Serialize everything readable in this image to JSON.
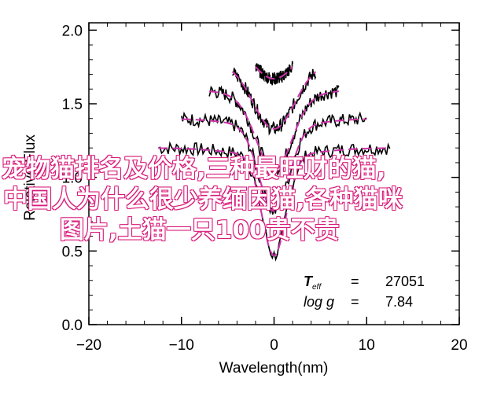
{
  "chart_data": {
    "type": "line",
    "xlabel": "Wavelength(nm)",
    "ylabel": "Relative Flux",
    "xlim": [
      -20,
      20
    ],
    "ylim": [
      0.0,
      2.05
    ],
    "x_ticks": [
      -20,
      -10,
      0,
      10,
      20
    ],
    "y_ticks": [
      0.0,
      0.5,
      1.0,
      1.5,
      2.0
    ],
    "x_tick_labels": [
      "−20",
      "−10",
      "0",
      "10",
      "20"
    ],
    "y_tick_labels": [
      "0.0",
      "0.5",
      "1.0",
      "1.5",
      "2.0"
    ],
    "grid": false,
    "colors": {
      "observed": "#000000",
      "model": "#cc33aa"
    },
    "series": [
      {
        "offset": 0.0,
        "xrange": [
          -12.5,
          12.5
        ],
        "sigma": 1.3,
        "depth": 0.68
      },
      {
        "offset": 0.2,
        "xrange": [
          -10,
          10
        ],
        "sigma": 1.6,
        "depth": 0.58
      },
      {
        "offset": 0.4,
        "xrange": [
          -7,
          7
        ],
        "sigma": 1.9,
        "depth": 0.5
      },
      {
        "offset": 0.6,
        "xrange": [
          -4.5,
          4.5
        ],
        "sigma": 2.2,
        "depth": 0.42
      },
      {
        "offset": 0.8,
        "xrange": [
          -2,
          2
        ],
        "sigma": 2.5,
        "depth": 0.28
      }
    ],
    "annotations": {
      "teff_label": "T",
      "teff_sub": "eff",
      "teff_eq": "=",
      "teff_value": "27051",
      "logg_label": "log g",
      "logg_eq": "=",
      "logg_value": "7.84"
    }
  },
  "overlay_text": {
    "line1": "宠物猫排名及价格,三种最旺财的猫,",
    "line2": "中国人为什么很少养缅因猫,各种猫咪",
    "line3": "图片,土猫一只100贵不贵"
  }
}
